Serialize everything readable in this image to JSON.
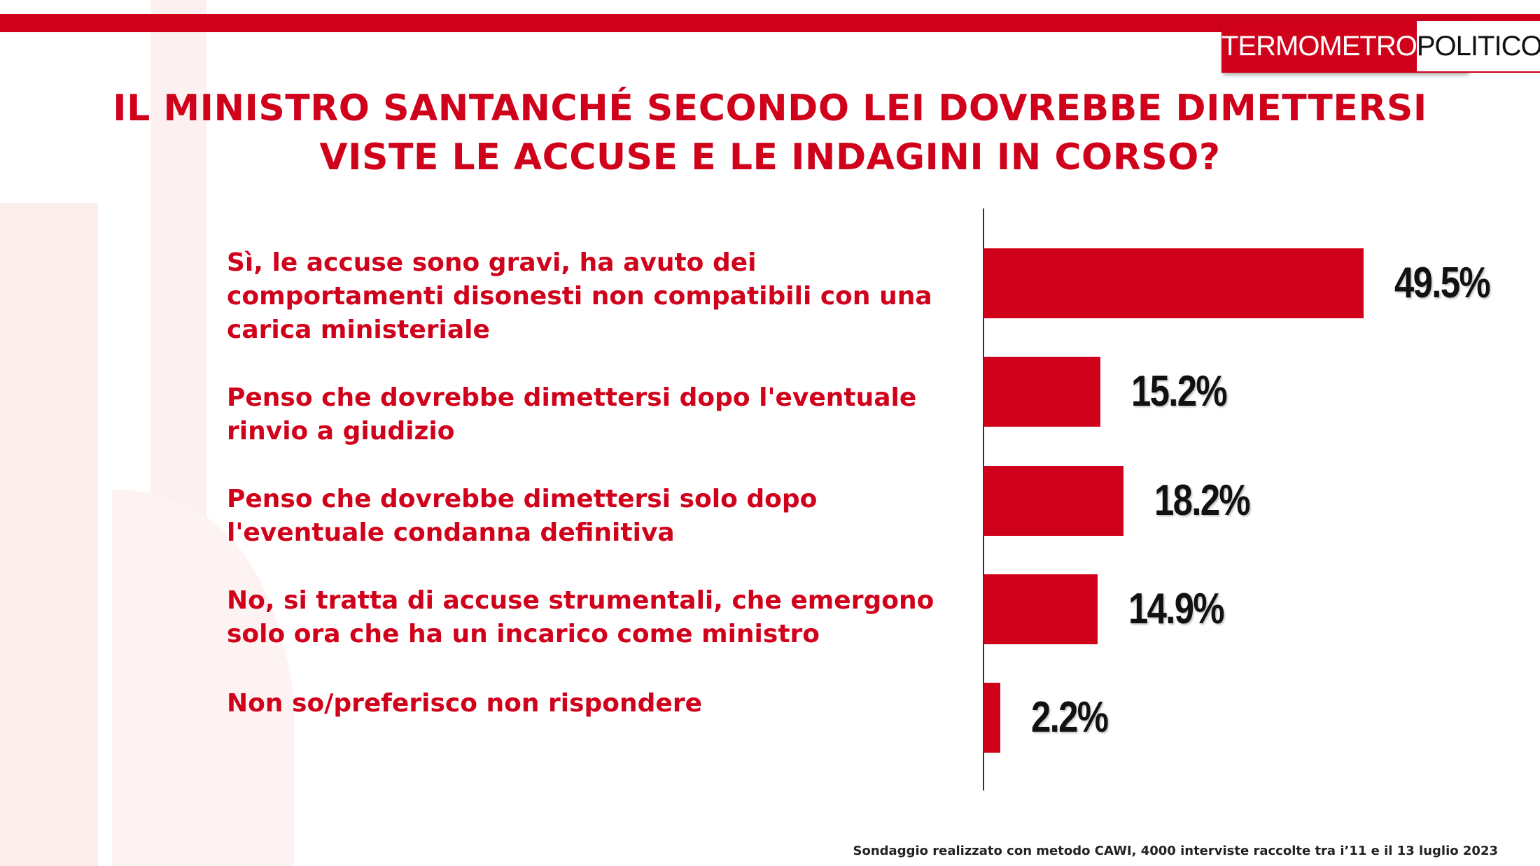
{
  "logo": {
    "part1": "TERMOMETRO",
    "part2": "POLITICO"
  },
  "colors": {
    "accent": "#d0021b",
    "value_text": "#111111",
    "background": "#ffffff"
  },
  "title": {
    "line1": "IL MINISTRO SANTANCHÉ SECONDO LEI DOVREBBE DIMETTERSI",
    "line2": "VISTE LE ACCUSE E LE INDAGINI IN CORSO?"
  },
  "chart_data": {
    "type": "bar",
    "orientation": "horizontal",
    "categories": [
      "Sì, le accuse sono gravi, ha avuto dei comportamenti disonesti non compatibili con una carica ministeriale",
      "Penso che dovrebbe dimettersi dopo l'eventuale rinvio a giudizio",
      "Penso che dovrebbe dimettersi solo dopo l'eventuale condanna definitiva",
      "No, si tratta di accuse strumentali, che emergono solo ora che ha un incarico come ministro",
      "Non so/preferisco non rispondere"
    ],
    "values": [
      49.5,
      15.2,
      18.2,
      14.9,
      2.2
    ],
    "value_labels": [
      "49.5%",
      "15.2%",
      "18.2%",
      "14.9%",
      "2.2%"
    ],
    "xlim": [
      0,
      50
    ],
    "grid": false,
    "legend": "none"
  },
  "footnote": "Sondaggio realizzato con metodo CAWI, 4000 interviste raccolte tra i’11 e il 13 luglio 2023"
}
